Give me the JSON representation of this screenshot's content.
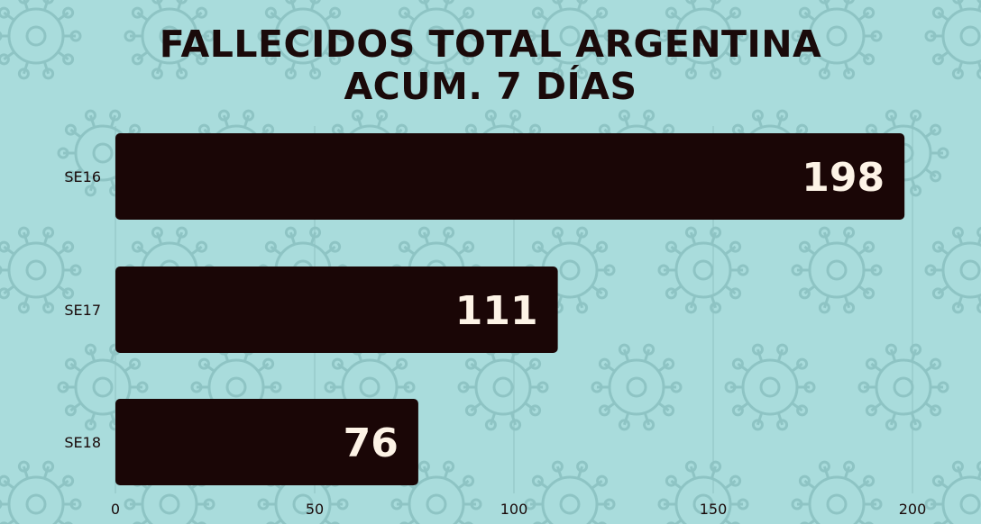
{
  "colors": {
    "background": "#a9dcdc",
    "bar": "#1a0606",
    "data_label": "#fdf3e6",
    "pattern": "#8ec4c4",
    "grid": "#8fc2c2"
  },
  "chart_data": {
    "type": "bar",
    "orientation": "horizontal",
    "title_lines": [
      "FALLECIDOS TOTAL ARGENTINA",
      "ACUM. 7 DÍAS"
    ],
    "categories": [
      "SE16",
      "SE17",
      "SE18"
    ],
    "values": [
      198,
      111,
      76
    ],
    "data_labels": [
      "198",
      "111",
      "76"
    ],
    "xlim": [
      0,
      200
    ],
    "x_ticks": [
      0,
      50,
      100,
      150,
      200
    ],
    "x_tick_labels": [
      "0",
      "50",
      "100",
      "150",
      "200"
    ],
    "grid": true,
    "legend": "none"
  }
}
